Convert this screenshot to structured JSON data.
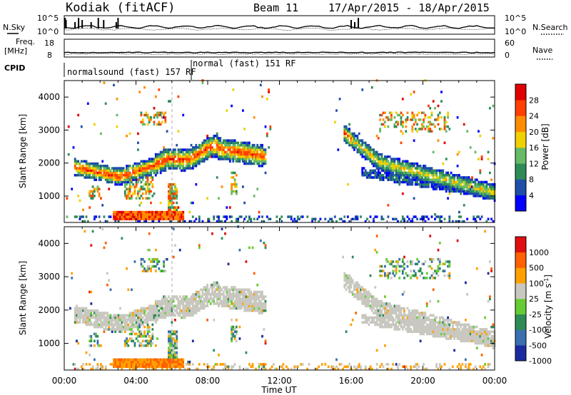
{
  "header": {
    "station": "Kodiak (fitACF)",
    "beam": "Beam 11",
    "dates": "17/Apr/2015 - 18/Apr/2015"
  },
  "top_panels": {
    "nsky_label": "N.Sky",
    "nsearch_label": "N.Search",
    "freq_label": "Freq.",
    "freq_unit": "[MHz]",
    "nave_label": "Nave",
    "cpid_label": "CPID",
    "n_ticks_left": [
      "10^5",
      "10^0"
    ],
    "n_ticks_right": [
      "10^5",
      "10^0"
    ],
    "freq_ticks": [
      "18",
      "8"
    ],
    "nave_ticks": [
      "60",
      "0"
    ],
    "cpid_entries": [
      "normalsound (fast) 157 RF",
      "normal (fast) 151 RF"
    ]
  },
  "chart_data": [
    {
      "type": "heatmap",
      "name": "power",
      "ylabel": "Slant Range [km]",
      "yticks": [
        1000,
        2000,
        3000,
        4000
      ],
      "ylim": [
        200,
        4500
      ],
      "xlim": [
        0,
        24
      ],
      "colorbar_label": "Power [dB]",
      "colorbar_ticks": [
        "4",
        "8",
        "12",
        "16",
        "20",
        "24",
        "28"
      ],
      "colors": [
        "#0000ff",
        "#1f4fa8",
        "#2e8b57",
        "#66bb66",
        "#f0d000",
        "#ff8c00",
        "#ff4000",
        "#e00000"
      ]
    },
    {
      "type": "heatmap",
      "name": "velocity",
      "ylabel": "Slant Range [km]",
      "yticks": [
        1000,
        2000,
        3000,
        4000
      ],
      "ylim": [
        200,
        4500
      ],
      "xlim": [
        0,
        24
      ],
      "xlabel": "Time UT",
      "xticks": [
        "00:00",
        "04:00",
        "08:00",
        "12:00",
        "16:00",
        "20:00",
        "00:00"
      ],
      "colorbar_label": "Velocity [m s",
      "colorbar_exp": "-1",
      "colorbar_suffix": "]",
      "colorbar_ticks": [
        "1000",
        "500",
        "100",
        "25",
        "-25",
        "-100",
        "-500",
        "-1000"
      ],
      "colors": [
        "#1a2aa0",
        "#3a6fb0",
        "#2e8b57",
        "#66cc33",
        "#c8c8c0",
        "#ffa000",
        "#ff6000",
        "#e01010"
      ]
    }
  ]
}
